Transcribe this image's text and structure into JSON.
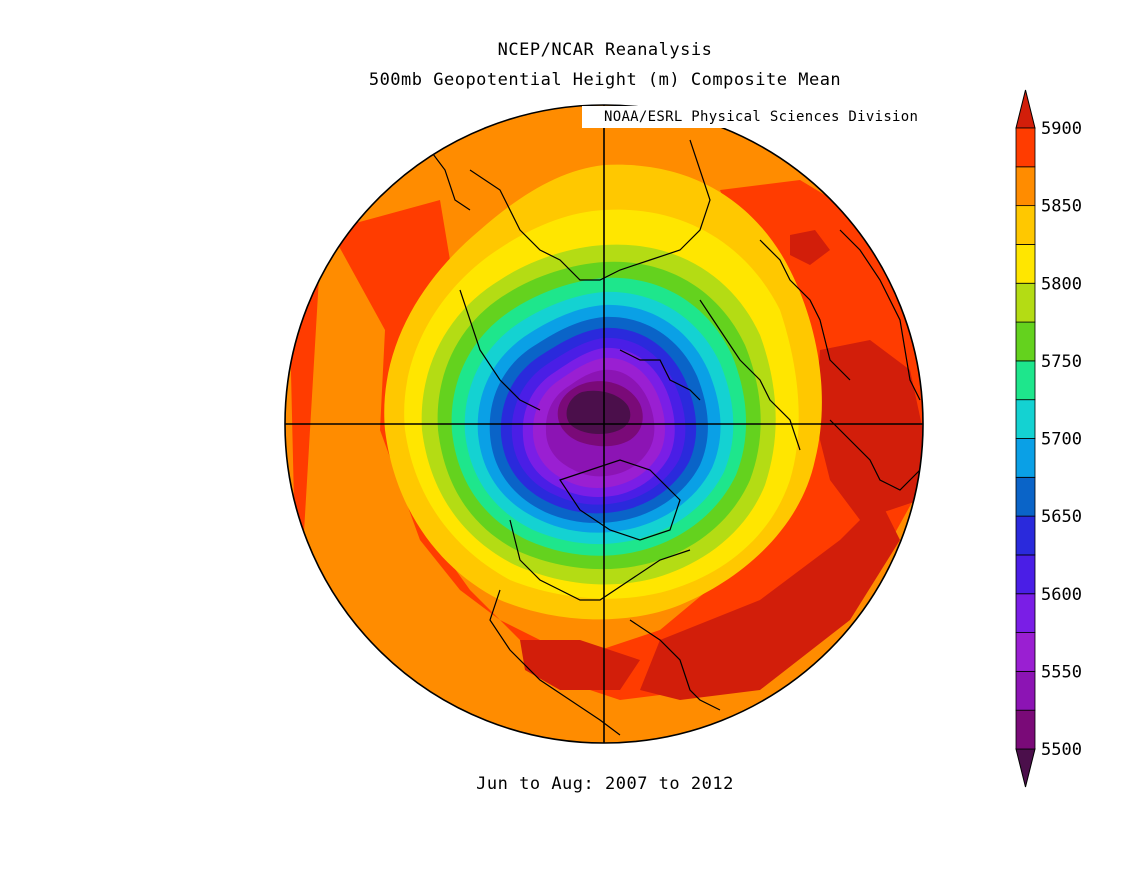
{
  "title_line1": "NCEP/NCAR Reanalysis",
  "title_line2": "500mb Geopotential Height (m) Composite Mean",
  "credit": "NOAA/ESRL Physical Sciences Division",
  "period": "Jun to Aug: 2007 to 2012",
  "map": {
    "projection": "polar stereographic, North Pole",
    "field": "500mb geopotential height",
    "units": "m"
  },
  "colorbar": {
    "tick_labels": [
      "5500",
      "5550",
      "5600",
      "5650",
      "5700",
      "5750",
      "5800",
      "5850",
      "5900"
    ],
    "levels": [
      5500,
      5525,
      5550,
      5575,
      5600,
      5625,
      5650,
      5675,
      5700,
      5725,
      5750,
      5775,
      5800,
      5825,
      5850,
      5875,
      5900
    ],
    "colors": [
      "#4b0f4b",
      "#7a0a78",
      "#8c14b4",
      "#9a1fd2",
      "#7a1ee6",
      "#4a1ee6",
      "#2a2adc",
      "#0a64c8",
      "#0aa0e6",
      "#14d2d2",
      "#1ee68c",
      "#64d21e",
      "#b4dc14",
      "#ffe600",
      "#ffc800",
      "#ff8c00",
      "#ff3c00",
      "#d21e0a"
    ]
  }
}
